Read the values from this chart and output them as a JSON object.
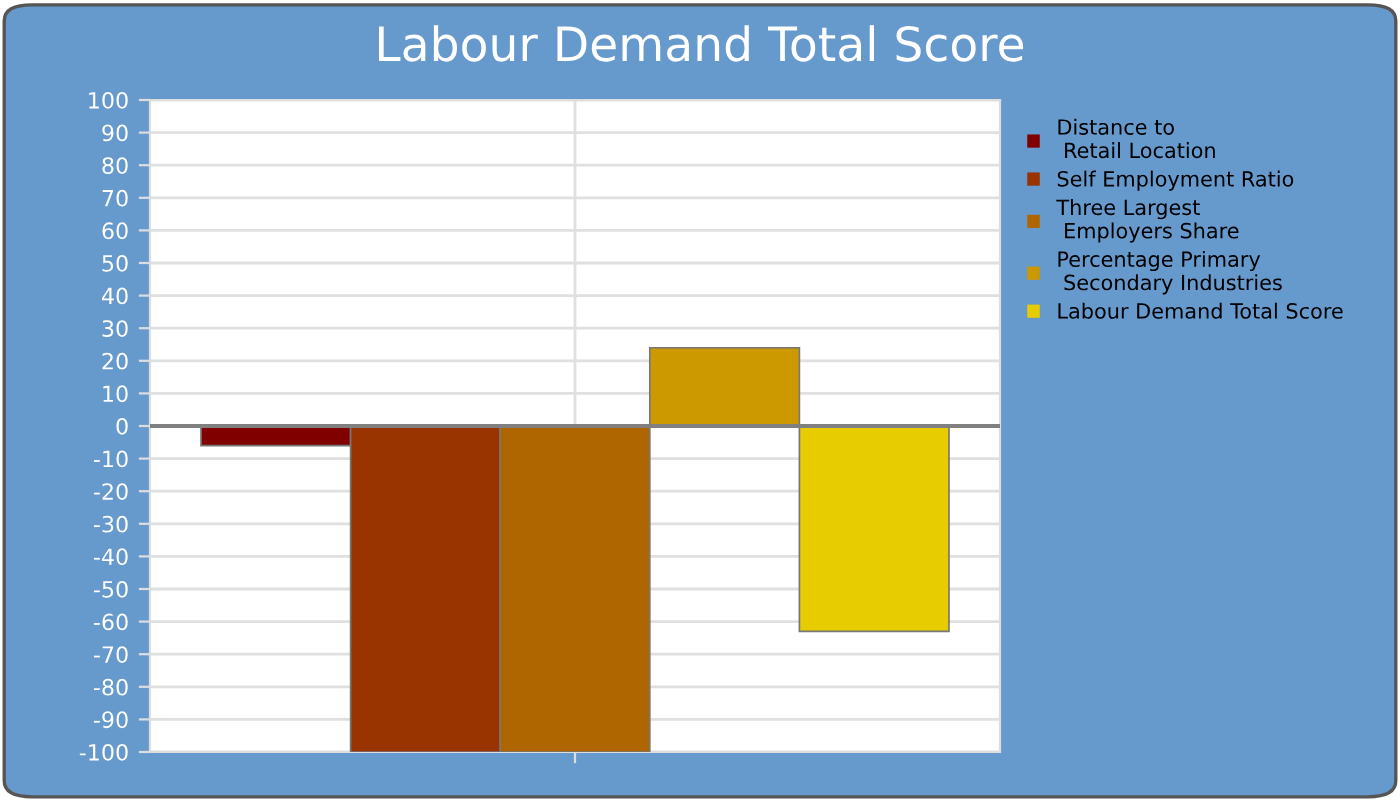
{
  "chart_data": {
    "type": "bar",
    "title": "Labour Demand Total Score",
    "categories": [
      null
    ],
    "series": [
      {
        "name": "Distance to\n Retail Location",
        "color": "#800000",
        "values": [
          -6
        ]
      },
      {
        "name": "Self Employment Ratio",
        "color": "#993300",
        "values": [
          -100
        ]
      },
      {
        "name": "Three Largest\n Employers Share",
        "color": "#b06600",
        "values": [
          -100
        ]
      },
      {
        "name": "Percentage Primary\n Secondary Industries",
        "color": "#cc9900",
        "values": [
          24
        ]
      },
      {
        "name": "Labour Demand Total Score",
        "color": "#e6cc00",
        "values": [
          -63
        ]
      }
    ],
    "ylim": [
      -100,
      100
    ],
    "yticks": [
      -100,
      -90,
      -80,
      -70,
      -60,
      -50,
      -40,
      -30,
      -20,
      -10,
      0,
      10,
      20,
      30,
      40,
      50,
      60,
      70,
      80,
      90,
      100
    ],
    "ref_lines": [
      {
        "axis": "y",
        "value": 0,
        "color": "#808080"
      }
    ],
    "grid": true,
    "legend": "right"
  }
}
